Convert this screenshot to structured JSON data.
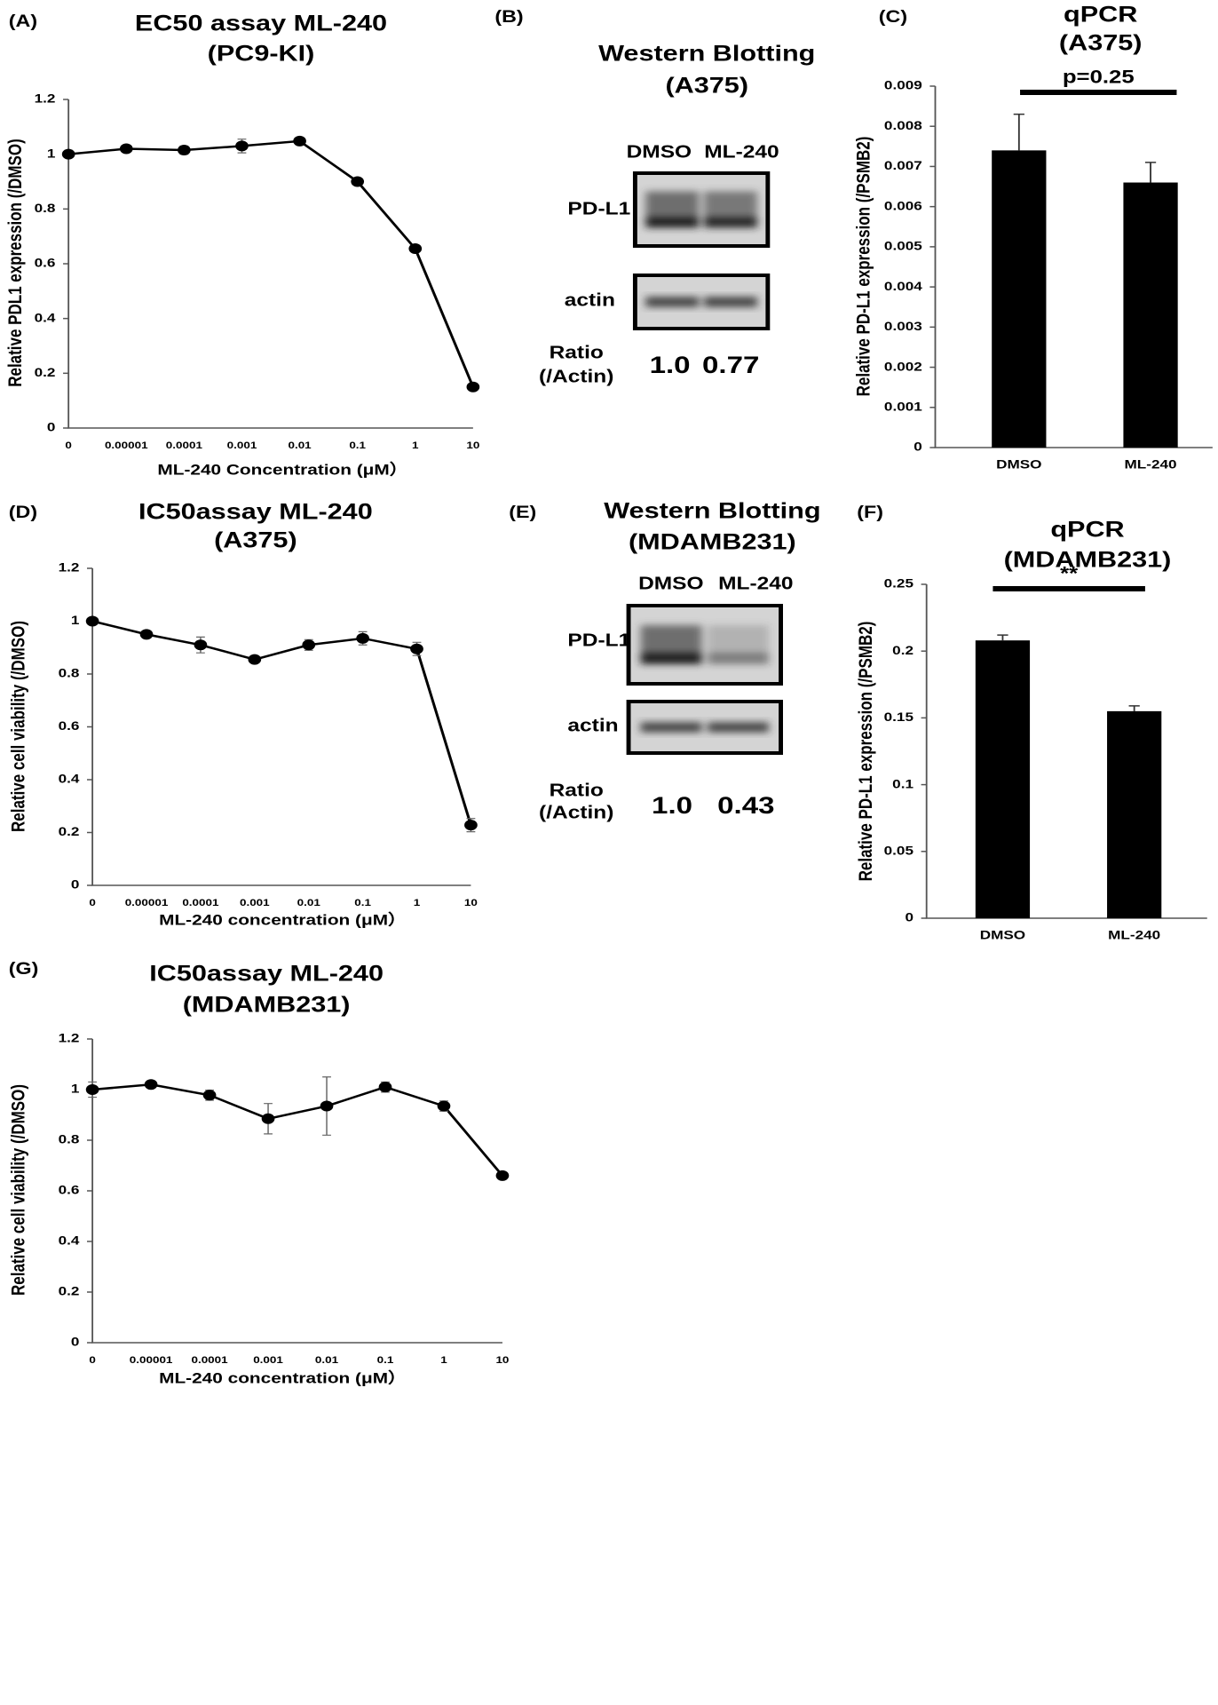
{
  "chart_data": [
    {
      "panel": "(A)",
      "type": "line",
      "title": "EC50 assay ML-240",
      "subtitle": "(PC9-KI)",
      "categories": [
        "0",
        "0.00001",
        "0.0001",
        "0.001",
        "0.01",
        "0.1",
        "1",
        "10"
      ],
      "values": [
        1,
        1.02,
        1.015,
        1.03,
        1.048,
        0.9,
        0.655,
        0.15
      ],
      "errors": [
        0.01,
        0.01,
        0.015,
        0.025,
        0.012,
        0.008,
        0.01,
        0.01
      ],
      "color": "#000000",
      "ylim": [
        0,
        1.2
      ],
      "yticks": [
        0,
        0.2,
        0.4,
        0.6,
        0.8,
        1,
        1.2
      ],
      "xlabel": "ML-240 Concentration (μM）",
      "ylabel": "Relative PDL1 expression (/DMSO)"
    },
    {
      "panel": "(C)",
      "type": "bar",
      "title": "qPCR",
      "subtitle": "(A375)",
      "categories": [
        "DMSO",
        "ML-240"
      ],
      "values": [
        0.0074,
        0.0066
      ],
      "errors": [
        0.0009,
        0.0005
      ],
      "color": "#000000",
      "ylim": [
        0,
        0.009
      ],
      "yticks": [
        0,
        0.001,
        0.002,
        0.003,
        0.004,
        0.005,
        0.006,
        0.007,
        0.008,
        0.009
      ],
      "annotation": "p=0.25",
      "ylabel": "Relative PD-L1 expression (/PSMB2)"
    },
    {
      "panel": "(D)",
      "type": "line",
      "title": "IC50assay ML-240",
      "subtitle": "(A375)",
      "categories": [
        "0",
        "0.00001",
        "0.0001",
        "0.001",
        "0.01",
        "0.1",
        "1",
        "10"
      ],
      "values": [
        1,
        0.95,
        0.91,
        0.855,
        0.91,
        0.935,
        0.895,
        0.228
      ],
      "errors": [
        0.01,
        0.01,
        0.03,
        0.01,
        0.02,
        0.025,
        0.025,
        0.025
      ],
      "color": "#000000",
      "ylim": [
        0,
        1.2
      ],
      "yticks": [
        0,
        0.2,
        0.4,
        0.6,
        0.8,
        1,
        1.2
      ],
      "xlabel": "ML-240 concentration (μM）",
      "ylabel": "Relative cell viability (/DMSO)"
    },
    {
      "panel": "(F)",
      "type": "bar",
      "title": "qPCR",
      "subtitle": "(MDAMB231)",
      "categories": [
        "DMSO",
        "ML-240"
      ],
      "values": [
        0.208,
        0.155
      ],
      "errors": [
        0.004,
        0.004
      ],
      "color": "#000000",
      "ylim": [
        0,
        0.25
      ],
      "yticks": [
        0,
        0.05,
        0.1,
        0.15,
        0.2,
        0.25
      ],
      "annotation": "**",
      "ylabel": "Relative PD-L1 expression (/PSMB2)"
    },
    {
      "panel": "(G)",
      "type": "line",
      "title": "IC50assay ML-240",
      "subtitle": "(MDAMB231)",
      "categories": [
        "0",
        "0.00001",
        "0.0001",
        "0.001",
        "0.01",
        "0.1",
        "1",
        "10"
      ],
      "values": [
        1,
        1.02,
        0.978,
        0.885,
        0.935,
        1.01,
        0.935,
        0.66
      ],
      "errors": [
        0.03,
        0.01,
        0.02,
        0.06,
        0.115,
        0.02,
        0.02,
        0.01
      ],
      "color": "#000000",
      "ylim": [
        0,
        1.2
      ],
      "yticks": [
        0,
        0.2,
        0.4,
        0.6,
        0.8,
        1,
        1.2
      ],
      "xlabel": "ML-240 concentration (μM）",
      "ylabel": "Relative cell viability (/DMSO)"
    }
  ],
  "blots": [
    {
      "panel": "(B)",
      "title": "Western Blotting",
      "subtitle": "(A375)",
      "lanes": [
        "DMSO",
        "ML-240"
      ],
      "rows": [
        "PD-L1",
        "actin"
      ],
      "ratio_label": [
        "Ratio",
        "(/Actin)"
      ],
      "ratios": [
        "1.0",
        "0.77"
      ]
    },
    {
      "panel": "(E)",
      "title": "Western Blotting",
      "subtitle": "(MDAMB231)",
      "lanes": [
        "DMSO",
        "ML-240"
      ],
      "rows": [
        "PD-L1",
        "actin"
      ],
      "ratio_label": [
        "Ratio",
        "(/Actin)"
      ],
      "ratios": [
        "1.0",
        "0.43"
      ]
    }
  ]
}
